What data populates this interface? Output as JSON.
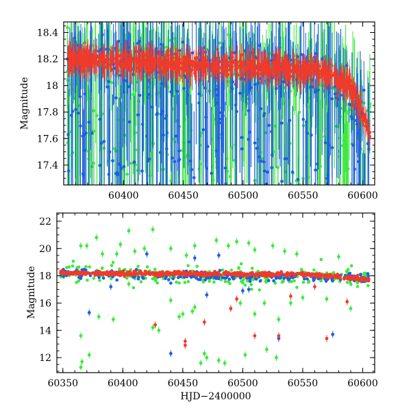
{
  "colors": {
    "green": "#3ee83e",
    "blue": "#1f5fe0",
    "red": "#f03a2a"
  },
  "chart_data": [
    {
      "type": "scatter",
      "panel": "top",
      "title": "",
      "xlabel": "",
      "ylabel": "Magnitude",
      "xlim": [
        60350,
        60610
      ],
      "ylim": [
        18.48,
        17.25
      ],
      "y_inverted": true,
      "xticks": [
        60400,
        60450,
        60500,
        60550,
        60600
      ],
      "xtick_labels": [
        "60400",
        "60450",
        "60500",
        "60550",
        "60600"
      ],
      "yticks": [
        17.4,
        17.6,
        17.8,
        18,
        18.2,
        18.4
      ],
      "ytick_labels": [
        "17.4",
        "17.6",
        "17.8",
        "18",
        "18.2",
        "18.4"
      ],
      "grid": false,
      "series": [
        {
          "color": "green",
          "baseline": [
            [
              60350,
              18.2
            ],
            [
              60575,
              18.1
            ],
            [
              60600,
              17.8
            ]
          ],
          "scatter": 0.25,
          "error": 0.3,
          "count": 420
        },
        {
          "color": "blue",
          "baseline": [
            [
              60350,
              18.22
            ],
            [
              60575,
              18.1
            ],
            [
              60600,
              17.8
            ]
          ],
          "scatter": 0.22,
          "error": 0.25,
          "count": 420
        },
        {
          "color": "red",
          "baseline": [
            [
              60350,
              18.2
            ],
            [
              60560,
              18.12
            ],
            [
              60590,
              18.0
            ],
            [
              60605,
              17.65
            ]
          ],
          "scatter": 0.08,
          "error": 0.1,
          "count": 700
        }
      ]
    },
    {
      "type": "scatter",
      "panel": "bottom",
      "title": "",
      "xlabel": "HJD−2400000",
      "ylabel": "Magnitude",
      "xlim": [
        60345,
        60610
      ],
      "ylim": [
        22.6,
        10.9
      ],
      "y_inverted": true,
      "xticks": [
        60350,
        60400,
        60450,
        60500,
        60550,
        60600
      ],
      "xtick_labels": [
        "60350",
        "60400",
        "60450",
        "60500",
        "60550",
        "60600"
      ],
      "yticks": [
        12,
        14,
        16,
        18,
        20,
        22
      ],
      "ytick_labels": [
        "12",
        "14",
        "16",
        "18",
        "20",
        "22"
      ],
      "grid": false,
      "series": [
        {
          "color": "green",
          "baseline": [
            [
              60350,
              18.2
            ],
            [
              60600,
              17.8
            ]
          ],
          "scatter": 0.7,
          "count": 260,
          "outliers": [
            [
              60365,
              11.3
            ],
            [
              60366,
              11.7
            ],
            [
              60365,
              13.6
            ],
            [
              60372,
              12.2
            ],
            [
              60380,
              15.0
            ],
            [
              60392,
              14.8
            ],
            [
              60405,
              17.4
            ],
            [
              60425,
              14.2
            ],
            [
              60430,
              14.0
            ],
            [
              60440,
              16.2
            ],
            [
              60447,
              15.0
            ],
            [
              60450,
              15.2
            ],
            [
              60458,
              15.4
            ],
            [
              60460,
              15.7
            ],
            [
              60465,
              11.6
            ],
            [
              60468,
              12.3
            ],
            [
              60470,
              12.0
            ],
            [
              60480,
              11.8
            ],
            [
              60485,
              11.6
            ],
            [
              60490,
              15.6
            ],
            [
              60498,
              16.0
            ],
            [
              60502,
              12.2
            ],
            [
              60510,
              15.2
            ],
            [
              60518,
              16.0
            ],
            [
              60520,
              12.6
            ],
            [
              60528,
              12.0
            ],
            [
              60530,
              14.8
            ],
            [
              60540,
              16.0
            ],
            [
              60550,
              16.4
            ],
            [
              60570,
              16.3
            ],
            [
              60590,
              15.6
            ],
            [
              60365,
              20.2
            ],
            [
              60370,
              20.2
            ],
            [
              60378,
              20.8
            ],
            [
              60383,
              19.6
            ],
            [
              60395,
              19.6
            ],
            [
              60398,
              20.3
            ],
            [
              60405,
              21.3
            ],
            [
              60410,
              19.8
            ],
            [
              60418,
              20.0
            ],
            [
              60425,
              21.4
            ],
            [
              60440,
              20.0
            ],
            [
              60453,
              19.5
            ],
            [
              60460,
              20.2
            ],
            [
              60478,
              20.6
            ],
            [
              60488,
              20.2
            ],
            [
              60495,
              20.5
            ],
            [
              60505,
              20.4
            ],
            [
              60510,
              19.9
            ],
            [
              60525,
              20.2
            ],
            [
              60535,
              19.8
            ],
            [
              60545,
              19.6
            ],
            [
              60580,
              19.4
            ]
          ]
        },
        {
          "color": "blue",
          "baseline": [
            [
              60350,
              18.2
            ],
            [
              60600,
              17.8
            ]
          ],
          "scatter": 0.35,
          "count": 260,
          "outliers": [
            [
              60372,
              15.3
            ],
            [
              60390,
              17.2
            ],
            [
              60440,
              12.3
            ],
            [
              60470,
              16.6
            ],
            [
              60500,
              16.9
            ],
            [
              60505,
              17.0
            ],
            [
              60530,
              13.4
            ],
            [
              60575,
              13.7
            ],
            [
              60460,
              19.3
            ],
            [
              60480,
              19.5
            ],
            [
              60420,
              19.6
            ]
          ]
        },
        {
          "color": "red",
          "baseline": [
            [
              60350,
              18.2
            ],
            [
              60560,
              18.1
            ],
            [
              60605,
              17.7
            ]
          ],
          "scatter": 0.15,
          "count": 600,
          "outliers": [
            [
              60427,
              14.4
            ],
            [
              60452,
              13.2
            ],
            [
              60452,
              12.9
            ],
            [
              60468,
              14.6
            ],
            [
              60490,
              15.6
            ],
            [
              60510,
              13.6
            ],
            [
              60530,
              13.6
            ],
            [
              60540,
              16.5
            ],
            [
              60570,
              13.4
            ],
            [
              60587,
              16.1
            ],
            [
              60495,
              16.3
            ],
            [
              60560,
              17.2
            ]
          ]
        }
      ]
    }
  ]
}
